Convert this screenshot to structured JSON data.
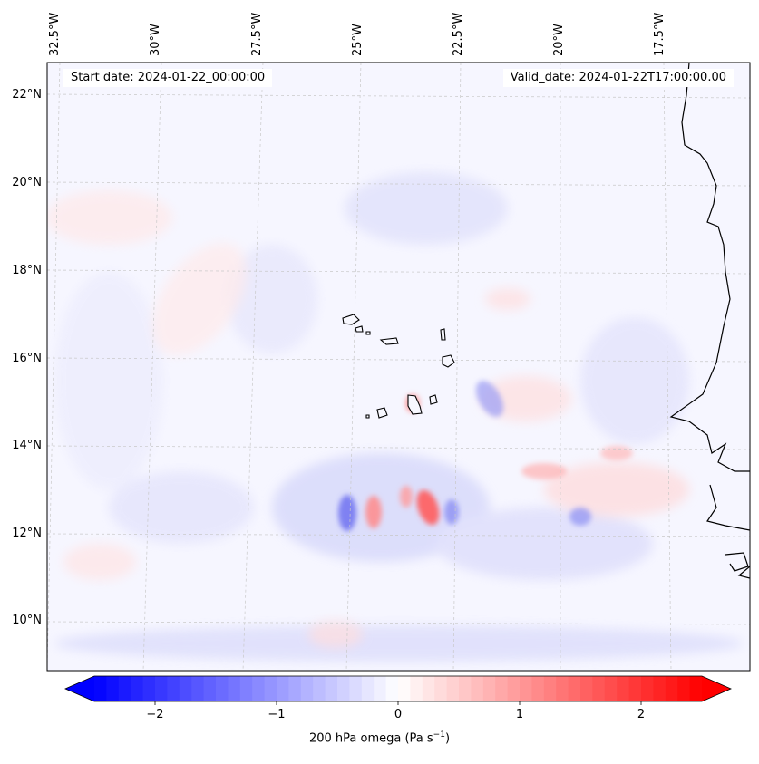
{
  "map": {
    "variable_label": "200 hPa omega (Pa s",
    "variable_unit_exp": "−1",
    "variable_label_end": ")",
    "start_date": "Start date: 2024-01-22_00:00:00",
    "valid_date": "Valid_date: 2024-01-22T17:00:00.00",
    "lon_labels": [
      "32.5°W",
      "30°W",
      "27.5°W",
      "25°W",
      "22.5°W",
      "20°W",
      "17.5°W"
    ],
    "lat_labels": [
      "22°N",
      "20°N",
      "18°N",
      "16°N",
      "14°N",
      "12°N",
      "10°N"
    ],
    "colorbar": {
      "min": -2.5,
      "max": 2.5,
      "ticks": [
        "−2",
        "−1",
        "0",
        "1",
        "2"
      ],
      "tick_values": [
        -2,
        -1,
        0,
        1,
        2
      ],
      "cmap": "bwr",
      "color_low": "#0000ff",
      "color_mid": "#ffffff",
      "color_high": "#ff0000"
    },
    "features": [
      "coastline-west-africa",
      "cape-verde-islands"
    ]
  }
}
